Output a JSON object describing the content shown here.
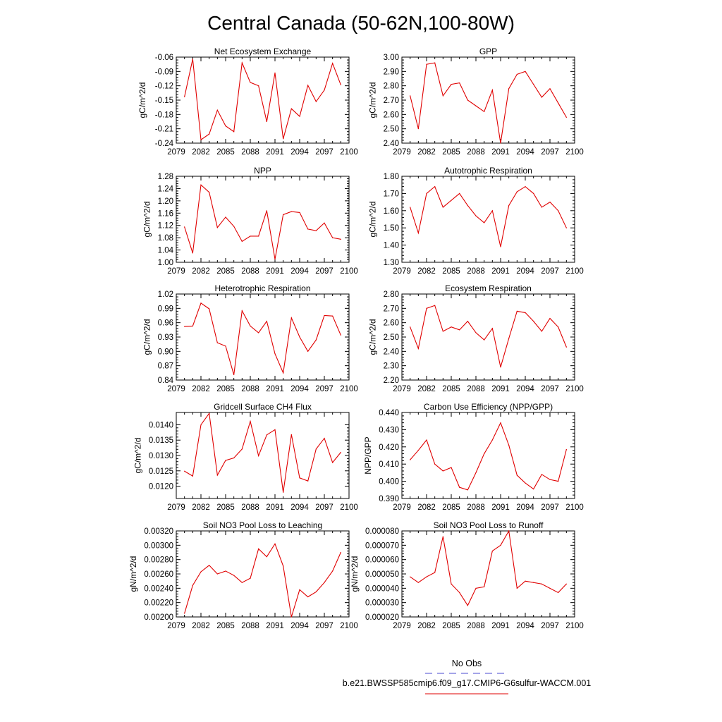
{
  "page": {
    "title": "Central Canada (50-62N,100-80W)",
    "legend": [
      {
        "label": "No Obs",
        "color": "#4a4ad0",
        "dash": true
      },
      {
        "label": "b.e21.BWSSP585cmip6.f09_g17.CMIP6-G6sulfur-WACCM.001",
        "color": "#e00000",
        "dash": false
      }
    ]
  },
  "chart_data": [
    {
      "type": "line",
      "title": "Net Ecosystem Exchange",
      "ylabel": "gC/m^2/d",
      "xlabel": "",
      "xlim": [
        2079,
        2100
      ],
      "xticks": [
        2079,
        2082,
        2085,
        2088,
        2091,
        2094,
        2097,
        2100
      ],
      "ylim": [
        -0.24,
        -0.06
      ],
      "yticks": [
        -0.24,
        -0.21,
        -0.18,
        -0.15,
        -0.12,
        -0.09,
        -0.06
      ],
      "ytick_labels": [
        "-0.24",
        "-0.21",
        "-0.18",
        "-0.15",
        "-0.12",
        "-0.09",
        "-0.06"
      ],
      "series": [
        {
          "color": "#e00000",
          "x": [
            2080,
            2081,
            2082,
            2083,
            2084,
            2085,
            2086,
            2087,
            2088,
            2089,
            2090,
            2091,
            2092,
            2093,
            2094,
            2095,
            2096,
            2097,
            2098,
            2099
          ],
          "values": [
            -0.143,
            -0.064,
            -0.233,
            -0.221,
            -0.171,
            -0.204,
            -0.216,
            -0.072,
            -0.113,
            -0.12,
            -0.195,
            -0.093,
            -0.231,
            -0.168,
            -0.184,
            -0.119,
            -0.153,
            -0.129,
            -0.073,
            -0.118
          ]
        }
      ]
    },
    {
      "type": "line",
      "title": "GPP",
      "ylabel": "gC/m^2/d",
      "xlabel": "",
      "xlim": [
        2079,
        2100
      ],
      "xticks": [
        2079,
        2082,
        2085,
        2088,
        2091,
        2094,
        2097,
        2100
      ],
      "ylim": [
        2.4,
        3.0
      ],
      "yticks": [
        2.4,
        2.5,
        2.6,
        2.7,
        2.8,
        2.9,
        3.0
      ],
      "ytick_labels": [
        "2.40",
        "2.50",
        "2.60",
        "2.70",
        "2.80",
        "2.90",
        "3.00"
      ],
      "series": [
        {
          "color": "#e00000",
          "x": [
            2080,
            2081,
            2082,
            2083,
            2084,
            2085,
            2086,
            2087,
            2088,
            2089,
            2090,
            2091,
            2092,
            2093,
            2094,
            2095,
            2096,
            2097,
            2098,
            2099
          ],
          "values": [
            2.73,
            2.5,
            2.95,
            2.96,
            2.73,
            2.81,
            2.82,
            2.7,
            2.66,
            2.62,
            2.77,
            2.4,
            2.78,
            2.88,
            2.9,
            2.81,
            2.72,
            2.78,
            2.68,
            2.58
          ]
        }
      ]
    },
    {
      "type": "line",
      "title": "NPP",
      "ylabel": "gC/m^2/d",
      "xlabel": "",
      "xlim": [
        2079,
        2100
      ],
      "xticks": [
        2079,
        2082,
        2085,
        2088,
        2091,
        2094,
        2097,
        2100
      ],
      "ylim": [
        1.0,
        1.28
      ],
      "yticks": [
        1.0,
        1.04,
        1.08,
        1.12,
        1.16,
        1.2,
        1.24,
        1.28
      ],
      "ytick_labels": [
        "1.00",
        "1.04",
        "1.08",
        "1.12",
        "1.16",
        "1.20",
        "1.24",
        "1.28"
      ],
      "series": [
        {
          "color": "#e00000",
          "x": [
            2080,
            2081,
            2082,
            2083,
            2084,
            2085,
            2086,
            2087,
            2088,
            2089,
            2090,
            2091,
            2092,
            2093,
            2094,
            2095,
            2096,
            2097,
            2098,
            2099
          ],
          "values": [
            1.115,
            1.03,
            1.252,
            1.228,
            1.113,
            1.147,
            1.117,
            1.068,
            1.085,
            1.085,
            1.168,
            1.01,
            1.155,
            1.165,
            1.162,
            1.108,
            1.103,
            1.128,
            1.08,
            1.075
          ]
        }
      ]
    },
    {
      "type": "line",
      "title": "Autotrophic Respiration",
      "ylabel": "gC/m^2/d",
      "xlabel": "",
      "xlim": [
        2079,
        2100
      ],
      "xticks": [
        2079,
        2082,
        2085,
        2088,
        2091,
        2094,
        2097,
        2100
      ],
      "ylim": [
        1.3,
        1.8
      ],
      "yticks": [
        1.3,
        1.4,
        1.5,
        1.6,
        1.7,
        1.8
      ],
      "ytick_labels": [
        "1.30",
        "1.40",
        "1.50",
        "1.60",
        "1.70",
        "1.80"
      ],
      "series": [
        {
          "color": "#e00000",
          "x": [
            2080,
            2081,
            2082,
            2083,
            2084,
            2085,
            2086,
            2087,
            2088,
            2089,
            2090,
            2091,
            2092,
            2093,
            2094,
            2095,
            2096,
            2097,
            2098,
            2099
          ],
          "values": [
            1.62,
            1.47,
            1.7,
            1.74,
            1.62,
            1.66,
            1.7,
            1.63,
            1.57,
            1.53,
            1.6,
            1.39,
            1.63,
            1.71,
            1.74,
            1.7,
            1.62,
            1.65,
            1.6,
            1.5
          ]
        }
      ]
    },
    {
      "type": "line",
      "title": "Heterotrophic Respiration",
      "ylabel": "gC/m^2/d",
      "xlabel": "",
      "xlim": [
        2079,
        2100
      ],
      "xticks": [
        2079,
        2082,
        2085,
        2088,
        2091,
        2094,
        2097,
        2100
      ],
      "ylim": [
        0.84,
        1.02
      ],
      "yticks": [
        0.84,
        0.87,
        0.9,
        0.93,
        0.96,
        0.99,
        1.02
      ],
      "ytick_labels": [
        "0.84",
        "0.87",
        "0.90",
        "0.93",
        "0.96",
        "0.99",
        "1.02"
      ],
      "series": [
        {
          "color": "#e00000",
          "x": [
            2080,
            2081,
            2082,
            2083,
            2084,
            2085,
            2086,
            2087,
            2088,
            2089,
            2090,
            2091,
            2092,
            2093,
            2094,
            2095,
            2096,
            2097,
            2098,
            2099
          ],
          "values": [
            0.952,
            0.953,
            1.001,
            0.989,
            0.918,
            0.911,
            0.851,
            0.985,
            0.953,
            0.939,
            0.963,
            0.895,
            0.855,
            0.97,
            0.93,
            0.9,
            0.924,
            0.975,
            0.974,
            0.934
          ]
        }
      ]
    },
    {
      "type": "line",
      "title": "Ecosystem Respiration",
      "ylabel": "gC/m^2/d",
      "xlabel": "",
      "xlim": [
        2079,
        2100
      ],
      "xticks": [
        2079,
        2082,
        2085,
        2088,
        2091,
        2094,
        2097,
        2100
      ],
      "ylim": [
        2.2,
        2.8
      ],
      "yticks": [
        2.2,
        2.3,
        2.4,
        2.5,
        2.6,
        2.7,
        2.8
      ],
      "ytick_labels": [
        "2.20",
        "2.30",
        "2.40",
        "2.50",
        "2.60",
        "2.70",
        "2.80"
      ],
      "series": [
        {
          "color": "#e00000",
          "x": [
            2080,
            2081,
            2082,
            2083,
            2084,
            2085,
            2086,
            2087,
            2088,
            2089,
            2090,
            2091,
            2092,
            2093,
            2094,
            2095,
            2096,
            2097,
            2098,
            2099
          ],
          "values": [
            2.57,
            2.42,
            2.7,
            2.72,
            2.54,
            2.57,
            2.55,
            2.61,
            2.53,
            2.48,
            2.56,
            2.29,
            2.49,
            2.68,
            2.67,
            2.61,
            2.54,
            2.63,
            2.57,
            2.43
          ]
        }
      ]
    },
    {
      "type": "line",
      "title": "Gridcell Surface CH4 Flux",
      "ylabel": "gC/m^2/d",
      "xlabel": "",
      "xlim": [
        2079,
        2100
      ],
      "xticks": [
        2079,
        2082,
        2085,
        2088,
        2091,
        2094,
        2097,
        2100
      ],
      "ylim": [
        0.0116,
        0.0144
      ],
      "yticks": [
        0.012,
        0.0125,
        0.013,
        0.0135,
        0.014
      ],
      "ytick_labels": [
        "0.0120",
        "0.0125",
        "0.0130",
        "0.0135",
        "0.0140"
      ],
      "series": [
        {
          "color": "#e00000",
          "x": [
            2080,
            2081,
            2082,
            2083,
            2084,
            2085,
            2086,
            2087,
            2088,
            2089,
            2090,
            2091,
            2092,
            2093,
            2094,
            2095,
            2096,
            2097,
            2098,
            2099
          ],
          "values": [
            0.01249,
            0.01233,
            0.014,
            0.01437,
            0.01236,
            0.01284,
            0.01292,
            0.01321,
            0.01411,
            0.01299,
            0.01367,
            0.01384,
            0.0118,
            0.01368,
            0.01227,
            0.01217,
            0.01321,
            0.01356,
            0.01277,
            0.0131
          ]
        }
      ]
    },
    {
      "type": "line",
      "title": "Carbon Use Efficiency (NPP/GPP)",
      "ylabel": "NPP/GPP",
      "xlabel": "",
      "xlim": [
        2079,
        2100
      ],
      "xticks": [
        2079,
        2082,
        2085,
        2088,
        2091,
        2094,
        2097,
        2100
      ],
      "ylim": [
        0.39,
        0.44
      ],
      "yticks": [
        0.39,
        0.4,
        0.41,
        0.42,
        0.43,
        0.44
      ],
      "ytick_labels": [
        "0.390",
        "0.400",
        "0.410",
        "0.420",
        "0.430",
        "0.440"
      ],
      "series": [
        {
          "color": "#e00000",
          "x": [
            2080,
            2081,
            2082,
            2083,
            2084,
            2085,
            2086,
            2087,
            2088,
            2089,
            2090,
            2091,
            2092,
            2093,
            2094,
            2095,
            2096,
            2097,
            2098,
            2099
          ],
          "values": [
            0.4125,
            0.418,
            0.424,
            0.41,
            0.406,
            0.408,
            0.3965,
            0.395,
            0.405,
            0.416,
            0.424,
            0.434,
            0.421,
            0.4035,
            0.399,
            0.3955,
            0.404,
            0.401,
            0.4,
            0.4185
          ]
        }
      ]
    },
    {
      "type": "line",
      "title": "Soil NO3 Pool Loss to Leaching",
      "ylabel": "gN/m^2/d",
      "xlabel": "",
      "xlim": [
        2079,
        2100
      ],
      "xticks": [
        2079,
        2082,
        2085,
        2088,
        2091,
        2094,
        2097,
        2100
      ],
      "ylim": [
        0.002,
        0.0032
      ],
      "yticks": [
        0.002,
        0.0022,
        0.0024,
        0.0026,
        0.0028,
        0.003,
        0.0032
      ],
      "ytick_labels": [
        "0.00200",
        "0.00220",
        "0.00240",
        "0.00260",
        "0.00280",
        "0.00300",
        "0.00320"
      ],
      "series": [
        {
          "color": "#e00000",
          "x": [
            2080,
            2081,
            2082,
            2083,
            2084,
            2085,
            2086,
            2087,
            2088,
            2089,
            2090,
            2091,
            2092,
            2093,
            2094,
            2095,
            2096,
            2097,
            2098,
            2099
          ],
          "values": [
            0.00205,
            0.00244,
            0.00263,
            0.00272,
            0.0026,
            0.00264,
            0.00258,
            0.00248,
            0.00254,
            0.00295,
            0.00284,
            0.00302,
            0.00271,
            0.002,
            0.00238,
            0.00228,
            0.00235,
            0.00248,
            0.00264,
            0.0029
          ]
        }
      ]
    },
    {
      "type": "line",
      "title": "Soil NO3 Pool Loss to Runoff",
      "ylabel": "gN/m^2/d",
      "xlabel": "",
      "xlim": [
        2079,
        2100
      ],
      "xticks": [
        2079,
        2082,
        2085,
        2088,
        2091,
        2094,
        2097,
        2100
      ],
      "ylim": [
        2e-05,
        8e-05
      ],
      "yticks": [
        2e-05,
        3e-05,
        4e-05,
        5e-05,
        6e-05,
        7e-05,
        8e-05
      ],
      "ytick_labels": [
        "0.000020",
        "0.000030",
        "0.000040",
        "0.000050",
        "0.000060",
        "0.000070",
        "0.000080"
      ],
      "series": [
        {
          "color": "#e00000",
          "x": [
            2080,
            2081,
            2082,
            2083,
            2084,
            2085,
            2086,
            2087,
            2088,
            2089,
            2090,
            2091,
            2092,
            2093,
            2094,
            2095,
            2096,
            2097,
            2098,
            2099
          ],
          "values": [
            4.8e-05,
            4.4e-05,
            4.8e-05,
            5.1e-05,
            7.6e-05,
            4.3e-05,
            3.7e-05,
            2.8e-05,
            4e-05,
            4.1e-05,
            6.6e-05,
            7e-05,
            8e-05,
            4e-05,
            4.5e-05,
            4.4e-05,
            4.3e-05,
            4e-05,
            3.7e-05,
            4.3e-05
          ]
        }
      ]
    }
  ]
}
